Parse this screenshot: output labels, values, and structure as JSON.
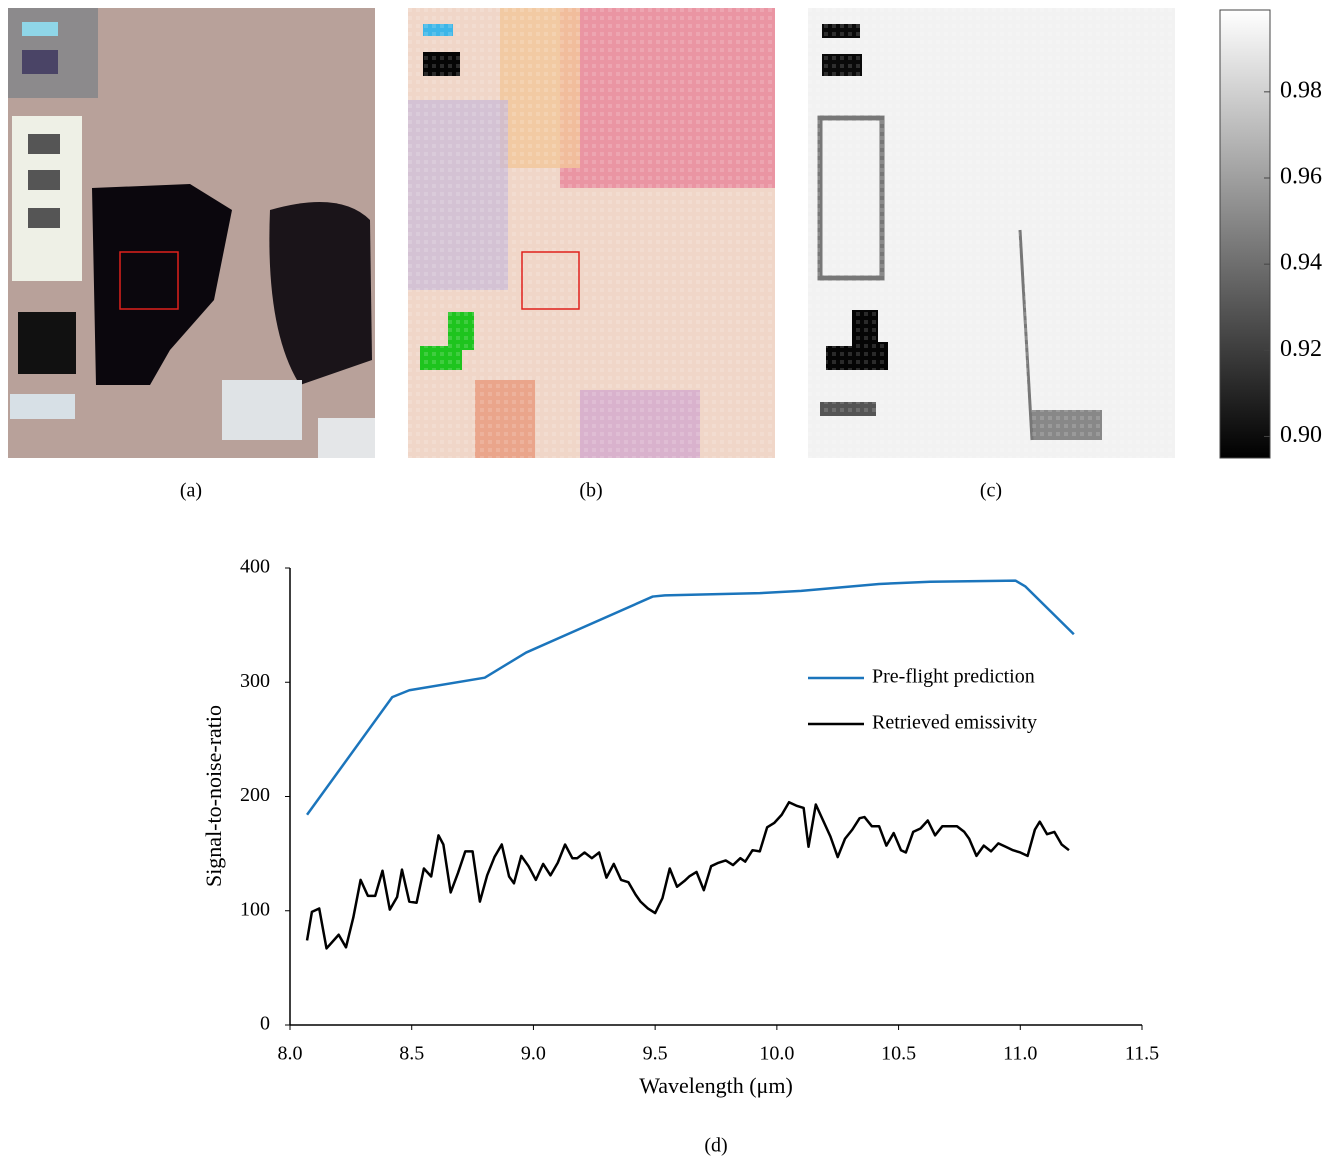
{
  "panels": {
    "a": "(a)",
    "b": "(b)",
    "c": "(c)",
    "d": "(d)"
  },
  "colorbar": {
    "lim": [
      0.895,
      0.999
    ],
    "ticks": [
      {
        "value": 0.9,
        "label": "0.90"
      },
      0.92,
      0.94,
      0.96,
      0.98
    ]
  },
  "chart_data": {
    "type": "line",
    "xlabel": "Wavelength (μm)",
    "ylabel": "Signal-to-noise-ratio",
    "xlim": [
      8.0,
      11.5
    ],
    "ylim": [
      0,
      400
    ],
    "xticks": [
      {
        "value": 8,
        "label": "8.0"
      },
      8.5,
      {
        "value": 9,
        "label": "9.0"
      },
      9.5,
      {
        "value": 10,
        "label": "10.0"
      },
      10.5,
      {
        "value": 11,
        "label": "11.0"
      },
      11.5
    ],
    "yticks": [
      0,
      100,
      200,
      300,
      400
    ],
    "legend": "upper right",
    "series": [
      {
        "name": "Pre-flight prediction",
        "color": "#1b75bc",
        "x": [
          8.07,
          8.42,
          8.49,
          8.8,
          8.97,
          9.49,
          9.54,
          9.93,
          10.1,
          10.42,
          10.63,
          10.98,
          11.02,
          11.22
        ],
        "values": [
          184,
          287,
          293,
          304,
          326,
          375,
          376,
          378,
          380,
          386,
          388,
          389,
          384,
          342
        ]
      },
      {
        "name": "Retrieved emissivity",
        "color": "#000000",
        "x": [
          8.07,
          8.09,
          8.12,
          8.15,
          8.2,
          8.23,
          8.26,
          8.29,
          8.32,
          8.35,
          8.38,
          8.41,
          8.44,
          8.46,
          8.49,
          8.52,
          8.55,
          8.58,
          8.61,
          8.63,
          8.66,
          8.69,
          8.72,
          8.75,
          8.78,
          8.81,
          8.84,
          8.87,
          8.9,
          8.92,
          8.95,
          8.98,
          9.01,
          9.04,
          9.07,
          9.1,
          9.13,
          9.16,
          9.18,
          9.21,
          9.24,
          9.27,
          9.3,
          9.33,
          9.36,
          9.39,
          9.42,
          9.44,
          9.47,
          9.5,
          9.53,
          9.56,
          9.59,
          9.62,
          9.64,
          9.67,
          9.7,
          9.73,
          9.76,
          9.79,
          9.82,
          9.85,
          9.87,
          9.9,
          9.93,
          9.96,
          9.99,
          10.02,
          10.05,
          10.08,
          10.11,
          10.13,
          10.16,
          10.19,
          10.22,
          10.25,
          10.28,
          10.31,
          10.34,
          10.36,
          10.39,
          10.42,
          10.45,
          10.48,
          10.51,
          10.53,
          10.56,
          10.59,
          10.62,
          10.65,
          10.68,
          10.71,
          10.74,
          10.77,
          10.79,
          10.82,
          10.85,
          10.88,
          10.91,
          10.94,
          10.97,
          11.0,
          11.03,
          11.06,
          11.08,
          11.11,
          11.14,
          11.17,
          11.2
        ],
        "values": [
          74,
          99,
          102,
          67,
          79,
          68,
          94,
          127,
          113,
          113,
          135,
          101,
          112,
          136,
          108,
          107,
          137,
          130,
          166,
          158,
          116,
          133,
          152,
          152,
          108,
          131,
          147,
          158,
          130,
          124,
          148,
          139,
          127,
          141,
          131,
          142,
          158,
          146,
          146,
          151,
          146,
          151,
          129,
          141,
          127,
          125,
          114,
          108,
          102,
          98,
          111,
          137,
          121,
          126,
          130,
          134,
          118,
          139,
          142,
          144,
          140,
          146,
          143,
          153,
          152,
          173,
          177,
          184,
          195,
          192,
          190,
          156,
          193,
          179,
          165,
          147,
          163,
          171,
          181,
          182,
          174,
          174,
          157,
          168,
          153,
          151,
          169,
          172,
          179,
          166,
          174,
          174,
          174,
          169,
          163,
          148,
          157,
          152,
          159,
          156,
          153,
          151,
          148,
          171,
          178,
          167,
          169,
          158,
          153
        ]
      }
    ]
  }
}
